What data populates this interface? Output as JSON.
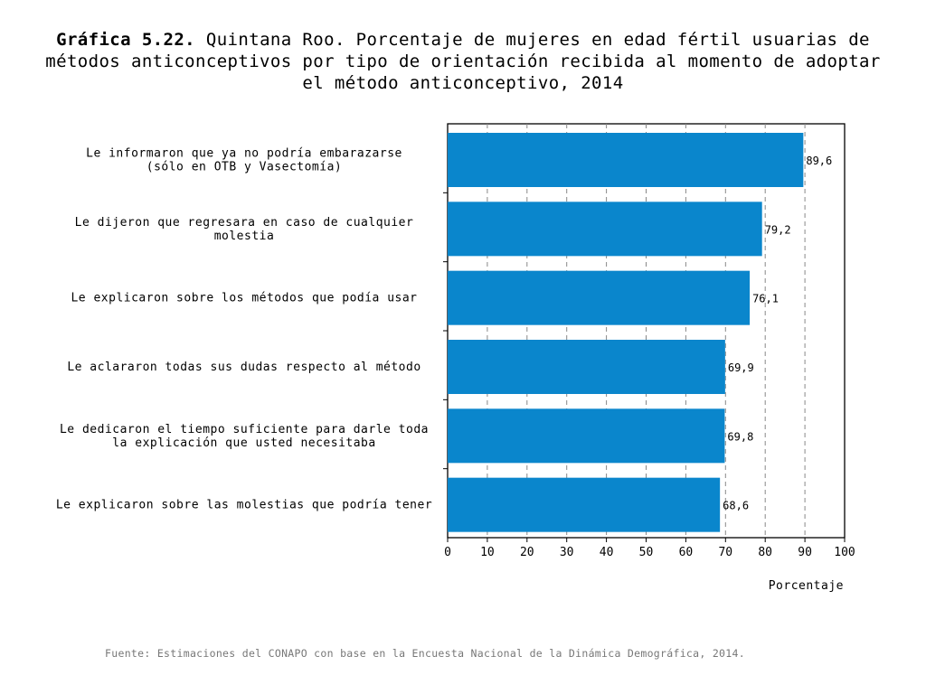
{
  "title": {
    "number": "Gráfica 5.22.",
    "text": "Quintana Roo. Porcentaje de mujeres en edad fértil usuarias de métodos anticonceptivos por tipo de orientación recibida al momento de adoptar el método anticonceptivo, 2014"
  },
  "source": "Fuente: Estimaciones del CONAPO con base en la Encuesta Nacional de la Dinámica Demográfica, 2014.",
  "colors": {
    "bar": "#0a86cc",
    "grid": "#888888",
    "axis": "#000000"
  },
  "chart_data": {
    "type": "bar",
    "orientation": "horizontal",
    "title": "Gráfica 5.22. Quintana Roo. Porcentaje de mujeres en edad fértil usuarias de métodos anticonceptivos por tipo de orientación recibida al momento de adoptar el método anticonceptivo, 2014",
    "xlabel": "Porcentaje",
    "ylabel": "",
    "xlim": [
      0,
      100
    ],
    "ticks": [
      0,
      10,
      20,
      30,
      40,
      50,
      60,
      70,
      80,
      90,
      100
    ],
    "grid": "vertical dashed",
    "categories": [
      [
        "Le informaron que ya no podría embarazarse",
        "(sólo en OTB y Vasectomía)"
      ],
      [
        "Le dijeron que regresara en caso de cualquier",
        "molestia"
      ],
      [
        "Le explicaron sobre los métodos que podía usar"
      ],
      [
        "Le aclararon todas sus dudas respecto al método"
      ],
      [
        "Le dedicaron el tiempo suficiente para darle toda",
        "la explicación que usted necesitaba"
      ],
      [
        "Le explicaron sobre las molestias que podría tener"
      ]
    ],
    "values": [
      89.6,
      79.2,
      76.1,
      69.9,
      69.8,
      68.6
    ],
    "value_labels": [
      "89,6",
      "79,2",
      "76,1",
      "69,9",
      "69,8",
      "68,6"
    ]
  }
}
